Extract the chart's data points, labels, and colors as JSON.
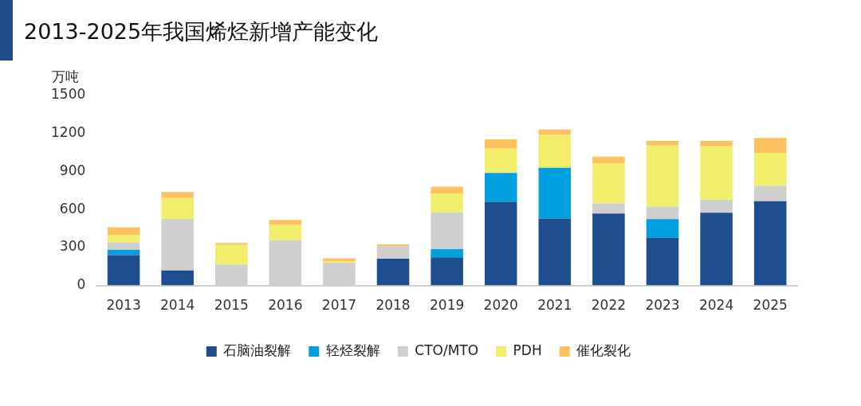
{
  "chart_data": {
    "type": "bar",
    "title": "2013-2025年我国烯烃新增产能变化",
    "ylabel": "万吨",
    "stacked": true,
    "legend": "bottom",
    "grid": false,
    "categories": [
      "2013",
      "2014",
      "2015",
      "2016",
      "2017",
      "2018",
      "2019",
      "2020",
      "2021",
      "2022",
      "2023",
      "2024",
      "2025"
    ],
    "series": [
      {
        "name": "石脑油裂解",
        "color": "#1f4e8f",
        "values": [
          240,
          119,
          0,
          0,
          0,
          212,
          222,
          661,
          528,
          568,
          378,
          575,
          665
        ]
      },
      {
        "name": "轻烃裂解",
        "color": "#009fdf",
        "values": [
          42,
          0,
          0,
          0,
          0,
          0,
          64,
          227,
          402,
          0,
          146,
          0,
          0
        ]
      },
      {
        "name": "CTO/MTO",
        "color": "#cfcfcf",
        "values": [
          57,
          407,
          165,
          358,
          180,
          96,
          292,
          0,
          0,
          80,
          99,
          101,
          121
        ]
      },
      {
        "name": "PDH",
        "color": "#f0ee6b",
        "values": [
          58,
          165,
          155,
          119,
          11,
          0,
          149,
          193,
          259,
          318,
          483,
          424,
          261
        ]
      },
      {
        "name": "催化裂化",
        "color": "#ffc060",
        "values": [
          63,
          46,
          15,
          40,
          23,
          16,
          53,
          74,
          42,
          51,
          36,
          42,
          119
        ]
      }
    ],
    "ylim": [
      0,
      1500
    ],
    "yticks": [
      0,
      300,
      600,
      900,
      1200,
      1500
    ]
  }
}
